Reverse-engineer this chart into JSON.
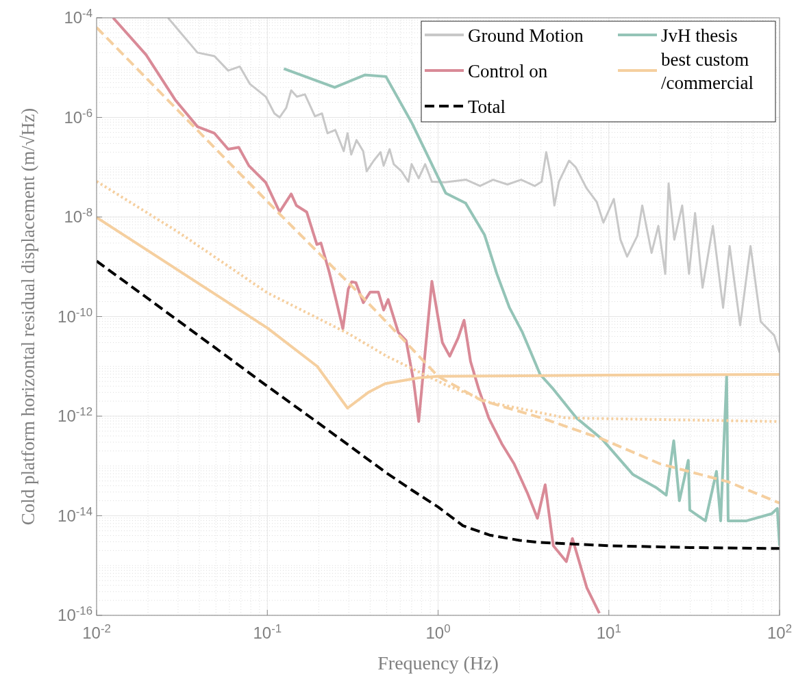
{
  "chart_data": {
    "type": "line",
    "xlabel": "Frequency (Hz)",
    "ylabel": "Cold platform horizontal residual displacement (m/√Hz)",
    "log": "xy",
    "grid": true,
    "legend": "top right",
    "xlim": [
      0.01,
      100
    ],
    "ylim": [
      1e-16,
      0.0001
    ],
    "xticks": [
      {
        "value": 0.01,
        "label": "10$^{-2}$"
      },
      {
        "value": 0.1,
        "label": "10$^{-1}$"
      },
      {
        "value": 1,
        "label": "10$^{0}$"
      },
      {
        "value": 10,
        "label": "10$^{1}$"
      },
      {
        "value": 100,
        "label": "10$^{2}$"
      }
    ],
    "yticks": [
      {
        "value": 1e-16,
        "label": "10$^{-16}$"
      },
      {
        "value": 1e-14,
        "label": "10$^{-14}$"
      },
      {
        "value": 1e-12,
        "label": "10$^{-12}$"
      },
      {
        "value": 1e-10,
        "label": "10$^{-10}$"
      },
      {
        "value": 1e-08,
        "label": "10$^{-8}$"
      },
      {
        "value": 1e-06,
        "label": "10$^{-6}$"
      },
      {
        "value": 0.0001,
        "label": "10$^{-4}$"
      }
    ],
    "series": [
      {
        "name": "Ground Motion",
        "color": "#c8c8c8",
        "line_style": "solid",
        "x": [
          0.0262,
          0.039,
          0.049,
          0.059,
          0.069,
          0.079,
          0.098,
          0.11,
          0.118,
          0.129,
          0.138,
          0.149,
          0.166,
          0.19,
          0.209,
          0.225,
          0.25,
          0.269,
          0.28,
          0.295,
          0.31,
          0.333,
          0.364,
          0.382,
          0.42,
          0.46,
          0.48,
          0.52,
          0.55,
          0.61,
          0.67,
          0.7,
          0.77,
          0.84,
          0.92,
          1.1,
          1.46,
          1.76,
          2.1,
          2.55,
          3.06,
          3.68,
          4.04,
          4.3,
          4.6,
          4.8,
          5.1,
          5.85,
          6.4,
          7.4,
          8.5,
          9.3,
          10.7,
          11.7,
          12.8,
          14.7,
          15.7,
          17.8,
          19.5,
          21.4,
          22.4,
          24.2,
          26.9,
          29.5,
          32,
          35.4,
          40.7,
          46.7,
          51,
          58.8,
          67.6,
          77.6,
          93,
          100
        ],
        "values": [
          0.0001,
          2e-05,
          1.7e-05,
          8.7e-06,
          1.05e-05,
          4.7e-06,
          2.6e-06,
          1.2e-06,
          1e-06,
          1.55e-06,
          3.5e-06,
          2.6e-06,
          2.9e-06,
          1.05e-06,
          1.2e-06,
          4.8e-07,
          5.6e-07,
          3e-07,
          2.1e-07,
          4.8e-07,
          1.8e-07,
          3.5e-07,
          2.1e-07,
          8.3e-08,
          1.35e-07,
          2e-07,
          1.07e-07,
          2.3e-07,
          1.15e-07,
          8.3e-08,
          5.1e-08,
          1.15e-07,
          6e-08,
          1.15e-07,
          5.1e-08,
          5e-08,
          5.6e-08,
          4.2e-08,
          5.6e-08,
          4.5e-08,
          5.6e-08,
          4.2e-08,
          5.1e-08,
          2e-07,
          6e-08,
          1.7e-08,
          5.1e-08,
          1.35e-07,
          1e-07,
          3.8e-08,
          2e-08,
          7.7e-09,
          2.3e-08,
          3.5e-09,
          1.6e-09,
          4.2e-09,
          1.7e-08,
          1.9e-09,
          6.6e-09,
          7.2e-10,
          4.7e-08,
          3.5e-09,
          1.7e-08,
          7.2e-10,
          1.2e-08,
          3.8e-10,
          6.6e-09,
          1.5e-10,
          2.6e-09,
          6.7e-11,
          2.6e-09,
          7.9e-11,
          4.2e-11,
          1.9e-11
        ]
      },
      {
        "name": "Control on",
        "color": "#d98a97",
        "line_style": "solid",
        "x": [
          0.0125,
          0.0195,
          0.029,
          0.039,
          0.049,
          0.059,
          0.068,
          0.078,
          0.098,
          0.118,
          0.138,
          0.148,
          0.17,
          0.195,
          0.206,
          0.23,
          0.25,
          0.277,
          0.298,
          0.312,
          0.33,
          0.365,
          0.4,
          0.447,
          0.48,
          0.51,
          0.585,
          0.65,
          0.72,
          0.77,
          0.83,
          0.92,
          1.0,
          1.06,
          1.17,
          1.31,
          1.42,
          1.55,
          1.73,
          1.98,
          2.36,
          2.79,
          3.33,
          3.82,
          4.24,
          4.73,
          5.64,
          6.12,
          7.43,
          8.8
        ],
        "values": [
          0.0001,
          1.8e-05,
          2.2e-06,
          6.5e-07,
          4.8e-07,
          2.3e-07,
          2.5e-07,
          1.07e-07,
          4.9e-08,
          1.26e-08,
          2.9e-08,
          1.7e-08,
          1.26e-08,
          2.8e-09,
          3e-09,
          8e-10,
          2.5e-10,
          5.7e-11,
          3.6e-10,
          5e-10,
          4.8e-10,
          1.9e-10,
          3.1e-10,
          3.1e-10,
          1.35e-10,
          2.2e-10,
          4.8e-11,
          3.3e-11,
          4.9e-12,
          7.8e-13,
          1.25e-11,
          5.1e-10,
          9.5e-11,
          3e-11,
          1.6e-11,
          3.7e-11,
          8.4e-11,
          1.25e-11,
          3.5e-12,
          9.2e-13,
          2.8e-13,
          1.1e-13,
          2.9e-14,
          8.9e-15,
          4.2e-14,
          2.5e-15,
          1.2e-15,
          3.5e-15,
          3.6e-16,
          1.1e-16
        ]
      },
      {
        "name": "Total",
        "color": "#000000",
        "line_style": "dashed",
        "x": [
          0.01,
          0.02,
          0.05,
          0.1,
          0.2,
          0.5,
          0.7,
          1,
          1.4,
          2,
          3,
          4,
          10,
          30,
          100
        ],
        "values": [
          1.3e-09,
          2.3e-10,
          2.3e-11,
          4e-12,
          7.2e-13,
          7.2e-14,
          3.3e-14,
          1.5e-14,
          6.3e-15,
          4.1e-15,
          3.2e-15,
          2.9e-15,
          2.5e-15,
          2.3e-15,
          2.2e-15
        ]
      },
      {
        "name": "JvH thesis",
        "color": "#94c4b7",
        "line_style": "solid",
        "x": [
          0.125,
          0.248,
          0.372,
          0.495,
          0.7,
          1.11,
          1.45,
          1.87,
          2.21,
          2.62,
          3.12,
          3.96,
          4.73,
          6.47,
          9.1,
          13.8,
          18.9,
          21.7,
          24,
          25.9,
          29.2,
          29.8,
          36.8,
          42.7,
          45.2,
          49,
          50,
          64,
          90,
          97,
          100
        ],
        "values": [
          9.5e-06,
          4e-06,
          7.1e-06,
          6.6e-06,
          7.9e-07,
          3e-08,
          1.9e-08,
          4.4e-09,
          7.2e-10,
          1.5e-10,
          4.8e-11,
          6.9e-12,
          3.5e-12,
          9.2e-13,
          3.5e-13,
          6.8e-14,
          3.7e-14,
          2.6e-14,
          3.2e-13,
          2e-14,
          1.3e-13,
          1.3e-14,
          7.9e-15,
          7.8e-14,
          7.9e-15,
          6.3e-12,
          7.9e-15,
          7.9e-15,
          1.1e-14,
          1.4e-14,
          2.5e-15
        ]
      },
      {
        "name": "best custom /commercial",
        "color": "#f5cf9f",
        "line_style": "solid",
        "x": [
          0.01,
          0.1,
          0.196,
          0.295,
          0.39,
          0.49,
          0.77,
          1,
          10,
          100
        ],
        "values": [
          9.8e-09,
          5.9e-11,
          1e-11,
          1.45e-12,
          3e-12,
          4.5e-12,
          5.9e-12,
          6.3e-12,
          6.7e-12,
          6.9e-12
        ]
      },
      {
        "color": "#f5cf9f",
        "line_style": "dashed",
        "x": [
          0.01,
          0.118,
          0.327,
          0.65,
          1,
          1.78,
          4,
          9.1,
          20,
          50,
          100
        ],
        "values": [
          6.4e-05,
          1.15e-08,
          3.5e-10,
          3e-11,
          6.3e-12,
          2.1e-12,
          9.3e-13,
          3.5e-13,
          1.1e-13,
          4.8e-14,
          1.8e-14
        ]
      },
      {
        "color": "#f5cf9f",
        "line_style": "dotted",
        "x": [
          0.01,
          0.03,
          0.1,
          0.3,
          0.5,
          1.1,
          2,
          5.6,
          100
        ],
        "values": [
          5.2e-08,
          5e-09,
          3e-10,
          4.5e-11,
          1.6e-11,
          4.3e-12,
          1.9e-12,
          9.2e-13,
          7.8e-13
        ]
      }
    ]
  }
}
